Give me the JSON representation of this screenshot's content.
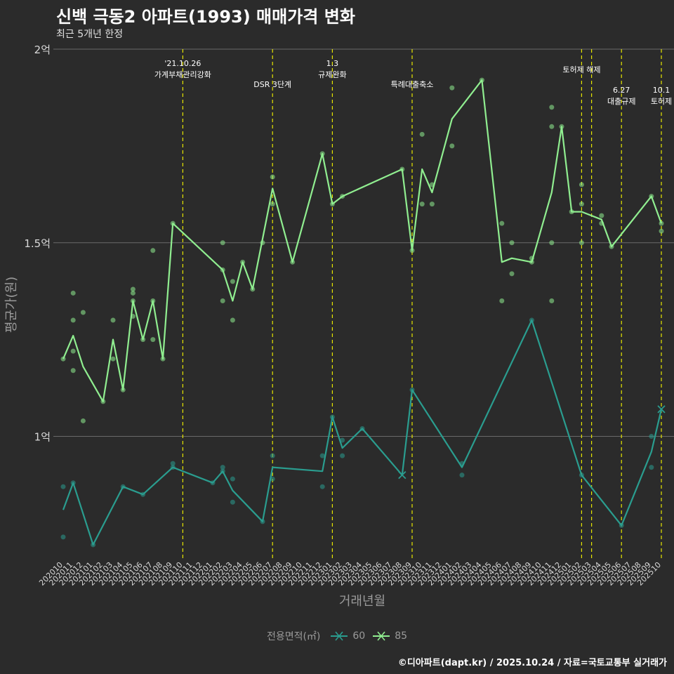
{
  "chart_data": {
    "type": "line",
    "title": "신백 극동2 아파트(1993) 매매가격 변화",
    "subtitle": "최근 5개년 한정",
    "caption": "©디아파트(dapt.kr) / 2025.10.24 / 자료=국토교통부 실거래가",
    "xlabel": "거래년월",
    "ylabel": "평균가(원)",
    "ylim": [
      0.68,
      2.0
    ],
    "y_ticks": [
      {
        "value": 1.0,
        "label": "1억"
      },
      {
        "value": 1.5,
        "label": "1.5억"
      },
      {
        "value": 2.0,
        "label": "2억"
      }
    ],
    "x_ticks": [
      "202010",
      "202011",
      "202012",
      "202101",
      "202102",
      "202103",
      "202104",
      "202105",
      "202106",
      "202107",
      "202108",
      "202109",
      "202110",
      "202111",
      "202112",
      "202201",
      "202202",
      "202203",
      "202204",
      "202205",
      "202206",
      "202207",
      "202208",
      "202209",
      "202210",
      "202211",
      "202212",
      "202301",
      "202302",
      "202303",
      "202304",
      "202305",
      "202306",
      "202307",
      "202308",
      "202309",
      "202310",
      "202311",
      "202312",
      "202401",
      "202402",
      "202403",
      "202404",
      "202405",
      "202406",
      "202407",
      "202408",
      "202409",
      "202410",
      "202411",
      "202412",
      "202501",
      "202502",
      "202503",
      "202504",
      "202505",
      "202506",
      "202507",
      "202508",
      "202509",
      "202510"
    ],
    "legend_title": "전용면적(㎡)",
    "annotations": [
      {
        "x": 12,
        "lines": [
          "'21.10.26",
          "가계부채관리강화"
        ],
        "row": 0
      },
      {
        "x": 21,
        "lines": [
          "DSR 3단계"
        ],
        "row": 2
      },
      {
        "x": 27,
        "lines": [
          "1.3",
          "규제완화"
        ],
        "row": 0
      },
      {
        "x": 35,
        "lines": [
          "특례대출축소"
        ],
        "row": 2
      },
      {
        "x": 52,
        "lines": [
          "토허제 해제"
        ],
        "row": 1
      },
      {
        "x": 53,
        "lines": [],
        "row": 1
      },
      {
        "x": 56,
        "lines": [
          "6.27",
          "대출규제"
        ],
        "row": 3
      },
      {
        "x": 60,
        "lines": [
          "10.1",
          "토허제"
        ],
        "row": 3
      }
    ],
    "series": [
      {
        "name": "60",
        "color": "#2a9d8f",
        "line": [
          [
            0,
            0.81
          ],
          [
            1,
            0.88
          ],
          [
            3,
            0.72
          ],
          [
            6,
            0.87
          ],
          [
            8,
            0.85
          ],
          [
            11,
            0.92
          ],
          [
            15,
            0.88
          ],
          [
            16,
            0.91
          ],
          [
            17,
            0.86
          ],
          [
            20,
            0.78
          ],
          [
            21,
            0.92
          ],
          [
            26,
            0.91
          ],
          [
            27,
            1.05
          ],
          [
            28,
            0.97
          ],
          [
            30,
            1.02
          ],
          [
            34,
            0.9
          ],
          [
            35,
            1.12
          ],
          [
            40,
            0.92
          ],
          [
            47,
            1.3
          ],
          [
            52,
            0.9
          ],
          [
            56,
            0.77
          ],
          [
            59,
            0.96
          ],
          [
            60,
            1.07
          ]
        ],
        "points": [
          [
            0,
            0.87
          ],
          [
            0,
            0.74
          ],
          [
            1,
            0.88
          ],
          [
            3,
            0.72
          ],
          [
            6,
            0.87
          ],
          [
            8,
            0.85
          ],
          [
            11,
            0.93
          ],
          [
            11,
            0.92
          ],
          [
            15,
            0.88
          ],
          [
            16,
            0.92
          ],
          [
            16,
            0.91
          ],
          [
            17,
            0.89
          ],
          [
            17,
            0.83
          ],
          [
            20,
            0.78
          ],
          [
            21,
            0.95
          ],
          [
            21,
            0.89
          ],
          [
            26,
            0.95
          ],
          [
            26,
            0.87
          ],
          [
            27,
            1.05
          ],
          [
            28,
            0.99
          ],
          [
            28,
            0.95
          ],
          [
            30,
            1.02
          ],
          [
            35,
            1.12
          ],
          [
            40,
            0.93
          ],
          [
            40,
            0.9
          ],
          [
            47,
            1.3
          ],
          [
            52,
            0.9
          ],
          [
            56,
            0.77
          ],
          [
            59,
            1.0
          ],
          [
            59,
            0.92
          ]
        ],
        "crosses": [
          [
            34,
            0.9
          ],
          [
            60,
            1.07
          ]
        ]
      },
      {
        "name": "85",
        "color": "#90ee90",
        "line": [
          [
            0,
            1.2
          ],
          [
            1,
            1.26
          ],
          [
            2,
            1.18
          ],
          [
            4,
            1.09
          ],
          [
            5,
            1.25
          ],
          [
            6,
            1.12
          ],
          [
            7,
            1.35
          ],
          [
            8,
            1.25
          ],
          [
            9,
            1.35
          ],
          [
            10,
            1.2
          ],
          [
            11,
            1.55
          ],
          [
            16,
            1.43
          ],
          [
            17,
            1.35
          ],
          [
            18,
            1.45
          ],
          [
            19,
            1.38
          ],
          [
            21,
            1.64
          ],
          [
            23,
            1.45
          ],
          [
            26,
            1.73
          ],
          [
            27,
            1.6
          ],
          [
            28,
            1.62
          ],
          [
            34,
            1.69
          ],
          [
            35,
            1.48
          ],
          [
            36,
            1.69
          ],
          [
            37,
            1.63
          ],
          [
            39,
            1.82
          ],
          [
            42,
            1.92
          ],
          [
            44,
            1.45
          ],
          [
            45,
            1.46
          ],
          [
            47,
            1.45
          ],
          [
            49,
            1.63
          ],
          [
            50,
            1.8
          ],
          [
            51,
            1.58
          ],
          [
            52,
            1.58
          ],
          [
            54,
            1.56
          ],
          [
            55,
            1.49
          ],
          [
            59,
            1.62
          ],
          [
            60,
            1.55
          ]
        ],
        "points": [
          [
            0,
            1.2
          ],
          [
            1,
            1.37
          ],
          [
            1,
            1.3
          ],
          [
            1,
            1.22
          ],
          [
            1,
            1.17
          ],
          [
            2,
            1.32
          ],
          [
            2,
            1.04
          ],
          [
            4,
            1.09
          ],
          [
            5,
            1.3
          ],
          [
            5,
            1.2
          ],
          [
            6,
            1.12
          ],
          [
            7,
            1.38
          ],
          [
            7,
            1.37
          ],
          [
            7,
            1.35
          ],
          [
            7,
            1.31
          ],
          [
            8,
            1.25
          ],
          [
            9,
            1.48
          ],
          [
            9,
            1.35
          ],
          [
            9,
            1.25
          ],
          [
            10,
            1.2
          ],
          [
            11,
            1.55
          ],
          [
            16,
            1.5
          ],
          [
            16,
            1.43
          ],
          [
            16,
            1.35
          ],
          [
            17,
            1.4
          ],
          [
            17,
            1.3
          ],
          [
            18,
            1.45
          ],
          [
            19,
            1.38
          ],
          [
            20,
            1.5
          ],
          [
            21,
            1.67
          ],
          [
            21,
            1.6
          ],
          [
            23,
            1.45
          ],
          [
            26,
            1.73
          ],
          [
            27,
            1.6
          ],
          [
            28,
            1.62
          ],
          [
            34,
            1.69
          ],
          [
            35,
            1.48
          ],
          [
            36,
            1.78
          ],
          [
            36,
            1.6
          ],
          [
            37,
            1.65
          ],
          [
            37,
            1.6
          ],
          [
            39,
            1.9
          ],
          [
            39,
            1.75
          ],
          [
            42,
            1.92
          ],
          [
            44,
            1.55
          ],
          [
            44,
            1.35
          ],
          [
            45,
            1.5
          ],
          [
            45,
            1.42
          ],
          [
            47,
            1.46
          ],
          [
            47,
            1.45
          ],
          [
            49,
            1.85
          ],
          [
            49,
            1.8
          ],
          [
            49,
            1.5
          ],
          [
            49,
            1.35
          ],
          [
            50,
            1.8
          ],
          [
            51,
            1.58
          ],
          [
            52,
            1.65
          ],
          [
            52,
            1.6
          ],
          [
            52,
            1.5
          ],
          [
            54,
            1.57
          ],
          [
            54,
            1.55
          ],
          [
            55,
            1.49
          ],
          [
            59,
            1.62
          ],
          [
            60,
            1.55
          ],
          [
            60,
            1.53
          ]
        ],
        "crosses": []
      }
    ]
  }
}
